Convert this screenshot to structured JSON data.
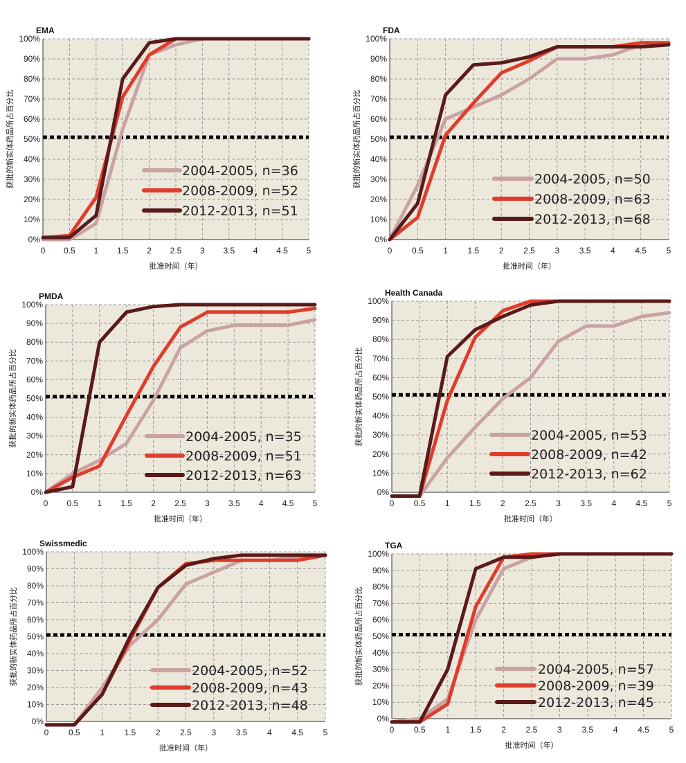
{
  "chart_data": [
    {
      "type": "line",
      "title": "EMA",
      "xlabel": "批准时间（年）",
      "ylabel": "获批的新实体药品所占百分比",
      "x": [
        0,
        0.5,
        1,
        1.5,
        2,
        2.5,
        3,
        3.5,
        4,
        4.5,
        5
      ],
      "x_ticks": [
        "0",
        "0.5",
        "1",
        "1.5",
        "2",
        "2.5",
        "3",
        "3.5",
        "4",
        "4.5",
        "5"
      ],
      "y_ticks": [
        "0%",
        "10%",
        "20%",
        "30%",
        "40%",
        "50%",
        "60%",
        "70%",
        "80%",
        "90%",
        "100%"
      ],
      "xlim": [
        0,
        5
      ],
      "ylim": [
        0,
        100
      ],
      "threshold": 51,
      "series": [
        {
          "name": "2004-2005, n=36",
          "color": "#c9a3a3",
          "values": [
            0,
            0,
            8,
            55,
            92,
            97,
            100,
            100,
            100,
            100,
            100
          ]
        },
        {
          "name": "2008-2009, n=52",
          "color": "#e03c2c",
          "values": [
            1,
            2,
            21,
            71,
            92,
            100,
            100,
            100,
            100,
            100,
            100
          ]
        },
        {
          "name": "2012-2013, n=51",
          "color": "#5a1a1a",
          "values": [
            1,
            1,
            12,
            80,
            98,
            100,
            100,
            100,
            100,
            100,
            100
          ]
        }
      ]
    },
    {
      "type": "line",
      "title": "FDA",
      "xlabel": "批准时间（年）",
      "ylabel": "获批的新实体药品所占百分比",
      "x": [
        0,
        0.5,
        1,
        1.5,
        2,
        2.5,
        3,
        3.5,
        4,
        4.5,
        5
      ],
      "x_ticks": [
        "0",
        "0.5",
        "1",
        "1.5",
        "2",
        "2.5",
        "3",
        "3.5",
        "4",
        "4.5",
        "5"
      ],
      "y_ticks": [
        "0%",
        "10%",
        "20%",
        "30%",
        "40%",
        "50%",
        "60%",
        "70%",
        "80%",
        "90%",
        "100%"
      ],
      "xlim": [
        0,
        5
      ],
      "ylim": [
        0,
        100
      ],
      "threshold": 51,
      "series": [
        {
          "name": "2004-2005, n=50",
          "color": "#c9a3a3",
          "values": [
            0,
            27,
            60,
            66,
            72,
            80,
            90,
            90,
            92,
            97,
            98
          ]
        },
        {
          "name": "2008-2009, n=63",
          "color": "#e03c2c",
          "values": [
            0,
            11,
            52,
            68,
            83,
            89,
            96,
            96,
            96,
            98,
            98
          ]
        },
        {
          "name": "2012-2013, n=68",
          "color": "#5a1a1a",
          "values": [
            0,
            18,
            72,
            87,
            88,
            91,
            96,
            96,
            96,
            96,
            97
          ]
        }
      ]
    },
    {
      "type": "line",
      "title": "PMDA",
      "xlabel": "批准时间（年）",
      "ylabel": "获批的新实体药品所占百分比",
      "x": [
        0,
        0.5,
        1,
        1.5,
        2,
        2.5,
        3,
        3.5,
        4,
        4.5,
        5
      ],
      "x_ticks": [
        "0",
        "0.5",
        "1",
        "1.5",
        "2",
        "2.5",
        "3",
        "3.5",
        "4",
        "4.5",
        "5"
      ],
      "y_ticks": [
        "0%",
        "10%",
        "20%",
        "30%",
        "40%",
        "50%",
        "60%",
        "70%",
        "80%",
        "90%",
        "100%"
      ],
      "xlim": [
        0,
        5
      ],
      "ylim": [
        0,
        100
      ],
      "threshold": 51,
      "series": [
        {
          "name": "2004-2005, n=35",
          "color": "#c9a3a3",
          "values": [
            0,
            10,
            17,
            26,
            49,
            77,
            86,
            89,
            89,
            89,
            92
          ]
        },
        {
          "name": "2008-2009, n=51",
          "color": "#e03c2c",
          "values": [
            0,
            8,
            14,
            41,
            67,
            88,
            96,
            96,
            96,
            96,
            98
          ]
        },
        {
          "name": "2012-2013, n=63",
          "color": "#5a1a1a",
          "values": [
            0,
            3,
            80,
            96,
            99,
            100,
            100,
            100,
            100,
            100,
            100
          ]
        }
      ]
    },
    {
      "type": "line",
      "title": "Health Canada",
      "xlabel": "批准时间（年）",
      "ylabel": "获批的新实体药品所占百分比",
      "x": [
        0,
        0.5,
        1,
        1.5,
        2,
        2.5,
        3,
        3.5,
        4,
        4.5,
        5
      ],
      "x_ticks": [
        "0",
        "0.5",
        "1",
        "1.5",
        "2",
        "2.5",
        "3",
        "3.5",
        "4",
        "4.5",
        "5"
      ],
      "y_ticks": [
        "0%",
        "10%",
        "20%",
        "30%",
        "40%",
        "50%",
        "60%",
        "70%",
        "80%",
        "90%",
        "100%"
      ],
      "xlim": [
        0,
        5
      ],
      "ylim": [
        0,
        100
      ],
      "threshold": 51,
      "series": [
        {
          "name": "2004-2005, n=53",
          "color": "#c9a3a3",
          "values": [
            -2,
            -2,
            18,
            34,
            49,
            60,
            79,
            87,
            87,
            92,
            94
          ]
        },
        {
          "name": "2008-2009, n=42",
          "color": "#e03c2c",
          "values": [
            -2,
            -2,
            48,
            81,
            95,
            100,
            100,
            100,
            100,
            100,
            100
          ]
        },
        {
          "name": "2012-2013, n=62",
          "color": "#5a1a1a",
          "values": [
            -2,
            -2,
            71,
            85,
            92,
            98,
            100,
            100,
            100,
            100,
            100
          ]
        }
      ]
    },
    {
      "type": "line",
      "title": "Swissmedic",
      "xlabel": "批准时间（年）",
      "ylabel": "获批的新实体药品所占百分比",
      "x": [
        0,
        0.5,
        1,
        1.5,
        2,
        2.5,
        3,
        3.5,
        4,
        4.5,
        5
      ],
      "x_ticks": [
        "0",
        "0.5",
        "1",
        "1.5",
        "2",
        "2.5",
        "3",
        "3.5",
        "4",
        "4.5",
        "5"
      ],
      "y_ticks": [
        "0%",
        "10%",
        "20%",
        "30%",
        "40%",
        "50%",
        "60%",
        "70%",
        "80%",
        "90%",
        "100%"
      ],
      "xlim": [
        0,
        5
      ],
      "ylim": [
        0,
        100
      ],
      "threshold": 51,
      "series": [
        {
          "name": "2004-2005, n=52",
          "color": "#c9a3a3",
          "values": [
            -2,
            -2,
            20,
            45,
            60,
            81,
            88,
            95,
            95,
            97,
            98
          ]
        },
        {
          "name": "2008-2009, n=43",
          "color": "#e03c2c",
          "values": [
            -2,
            -2,
            16,
            48,
            79,
            93,
            95,
            95,
            95,
            95,
            98
          ]
        },
        {
          "name": "2012-2013, n=48",
          "color": "#5a1a1a",
          "values": [
            -2,
            -2,
            16,
            50,
            79,
            92,
            96,
            98,
            98,
            98,
            98
          ]
        }
      ]
    },
    {
      "type": "line",
      "title": "TGA",
      "xlabel": "批准时间（年）",
      "ylabel": "获批的新实体药品所占百分比",
      "x": [
        0,
        0.5,
        1,
        1.5,
        2,
        2.5,
        3,
        3.5,
        4,
        4.5,
        5
      ],
      "x_ticks": [
        "0",
        "0.5",
        "1",
        "1.5",
        "2",
        "2.5",
        "3",
        "3.5",
        "4",
        "4.5",
        "5"
      ],
      "y_ticks": [
        "0%",
        "10%",
        "20%",
        "30%",
        "40%",
        "50%",
        "60%",
        "70%",
        "80%",
        "90%",
        "100%"
      ],
      "xlim": [
        0,
        5
      ],
      "ylim": [
        0,
        100
      ],
      "threshold": 51,
      "series": [
        {
          "name": "2004-2005, n=57",
          "color": "#c9a3a3",
          "values": [
            -2,
            0,
            12,
            60,
            91,
            98,
            100,
            100,
            100,
            100,
            100
          ]
        },
        {
          "name": "2008-2009, n=39",
          "color": "#e03c2c",
          "values": [
            -2,
            -2,
            9,
            68,
            98,
            100,
            100,
            100,
            100,
            100,
            100
          ]
        },
        {
          "name": "2012-2013, n=45",
          "color": "#5a1a1a",
          "values": [
            -2,
            -2,
            30,
            91,
            98,
            98,
            100,
            100,
            100,
            100,
            100
          ]
        }
      ]
    }
  ]
}
